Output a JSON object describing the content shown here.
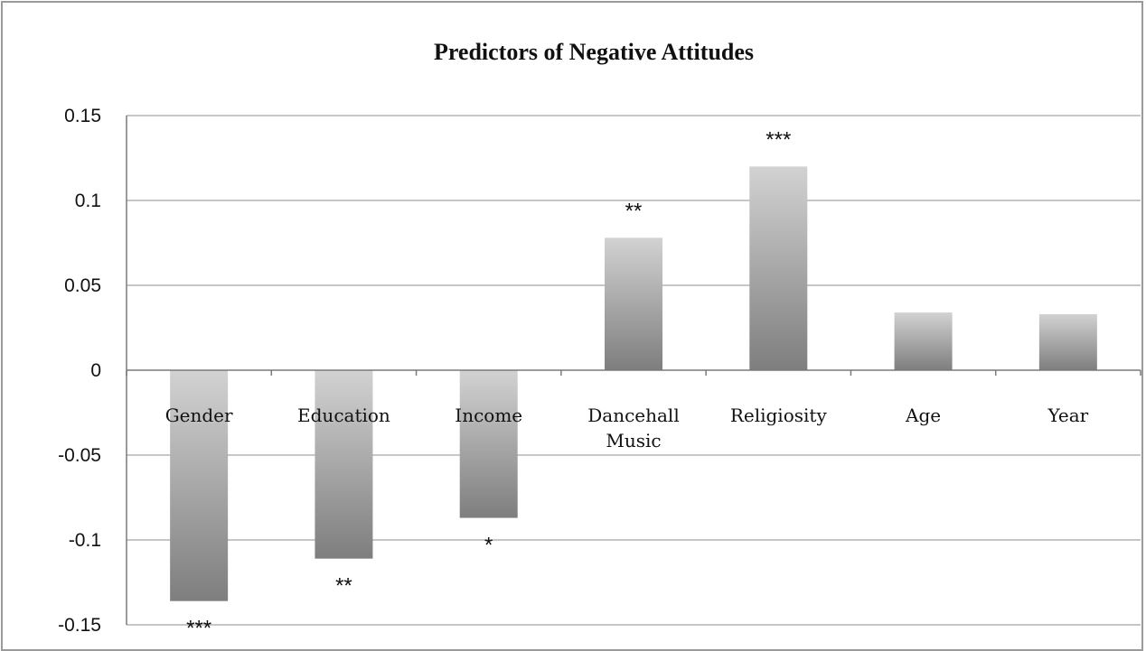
{
  "chart_data": {
    "type": "bar",
    "title": "Predictors of Negative Attitudes",
    "xlabel": "",
    "ylabel": "",
    "ylim": [
      -0.15,
      0.15
    ],
    "yticks": [
      0.15,
      0.1,
      0.05,
      0,
      -0.05,
      -0.1,
      -0.15
    ],
    "ytick_labels": [
      "0.15",
      "0.1",
      "0.05",
      "0",
      "-0.05",
      "-0.1",
      "-0.15"
    ],
    "grid": true,
    "legend": "none",
    "categories": [
      [
        "Gender"
      ],
      [
        "Education"
      ],
      [
        "Income"
      ],
      [
        "Dancehall",
        "Music"
      ],
      [
        "Religiosity"
      ],
      [
        "Age"
      ],
      [
        "Year"
      ]
    ],
    "values": [
      -0.136,
      -0.111,
      -0.087,
      0.078,
      0.12,
      0.034,
      0.033
    ],
    "significance": [
      "***",
      "**",
      "*",
      "**",
      "***",
      "",
      ""
    ],
    "colors": {
      "bar_light": "#d2d2d2",
      "bar_dark": "#7e7e7e"
    }
  }
}
